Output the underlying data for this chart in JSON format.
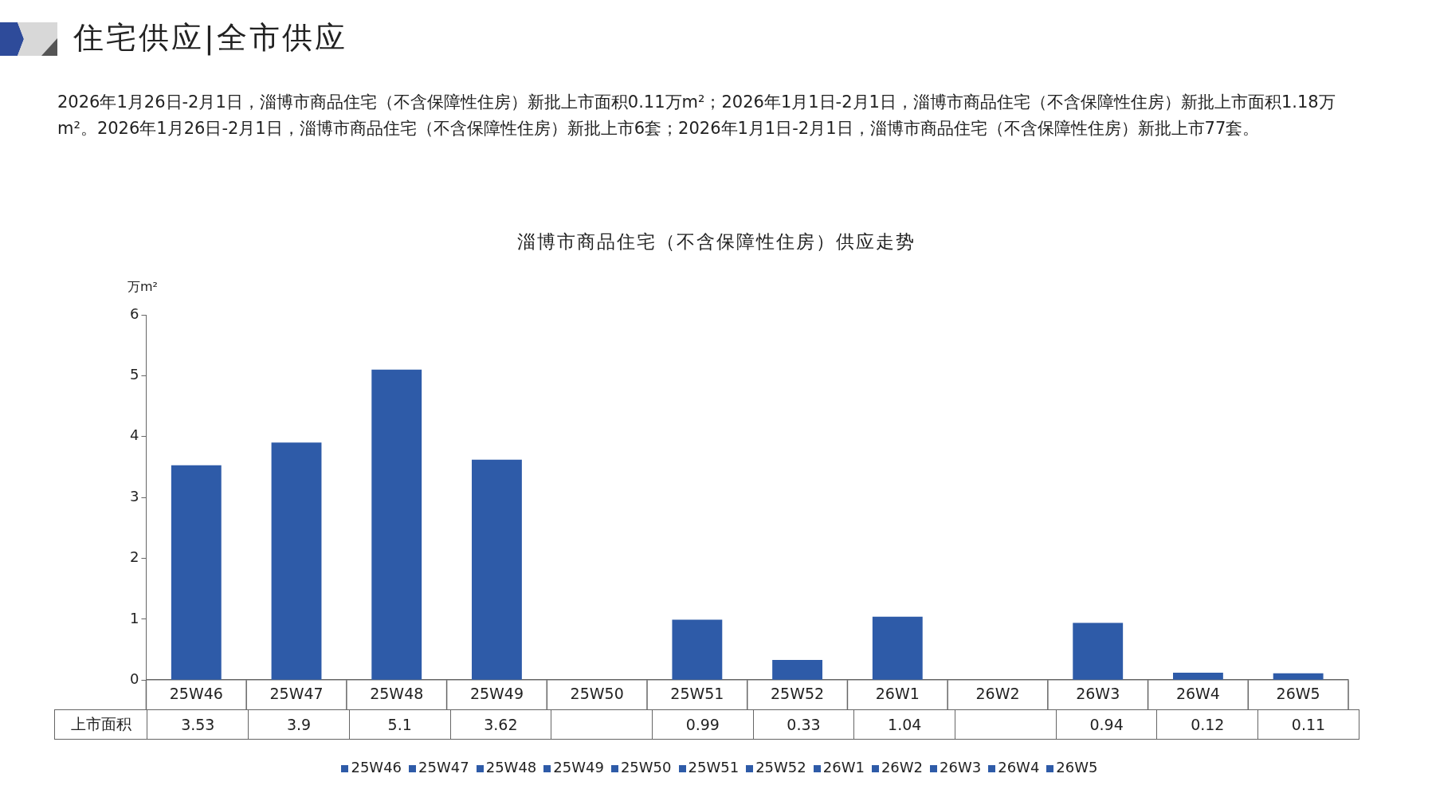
{
  "chart_data": {
    "type": "bar",
    "title": "淄博市商品住宅（不含保障性住房）供应走势",
    "subtitle": "2026年1月26日-2月1日，淄博市商品住宅（不含保障性住房）新批上市面积0.11万m²；2026年1月1日-2月1日，淄博市商品住宅（不含保障性住房）新批上市面积1.18万m²。2026年1月26日-2月1日，淄博市商品住宅（不含保障性住房）新批上市6套；2026年1月1日-2月1日，淄博市商品住宅（不含保障性住房）新批上市77套。",
    "annotations": [
      "住宅供应|全市供应"
    ],
    "ylabel": "万m²",
    "categories": [
      "25W46",
      "25W47",
      "25W48",
      "25W49",
      "25W50",
      "25W51",
      "25W52",
      "26W1",
      "26W2",
      "26W3",
      "26W4",
      "26W5"
    ],
    "series": [
      {
        "name": "上市面积",
        "color": "#2e5ba8",
        "values": [
          3.53,
          3.9,
          5.1,
          3.62,
          null,
          0.99,
          0.33,
          1.04,
          null,
          0.94,
          0.12,
          0.11
        ],
        "value_labels": [
          "3.53",
          "3.9",
          "5.1",
          "3.62",
          null,
          "0.99",
          "0.33",
          "1.04",
          null,
          "0.94",
          "0.12",
          "0.11"
        ]
      }
    ],
    "ylim": [
      0,
      6
    ],
    "yticks": [
      0,
      1,
      2,
      3,
      4,
      5,
      6
    ],
    "grid": false,
    "legend": "bottom"
  }
}
